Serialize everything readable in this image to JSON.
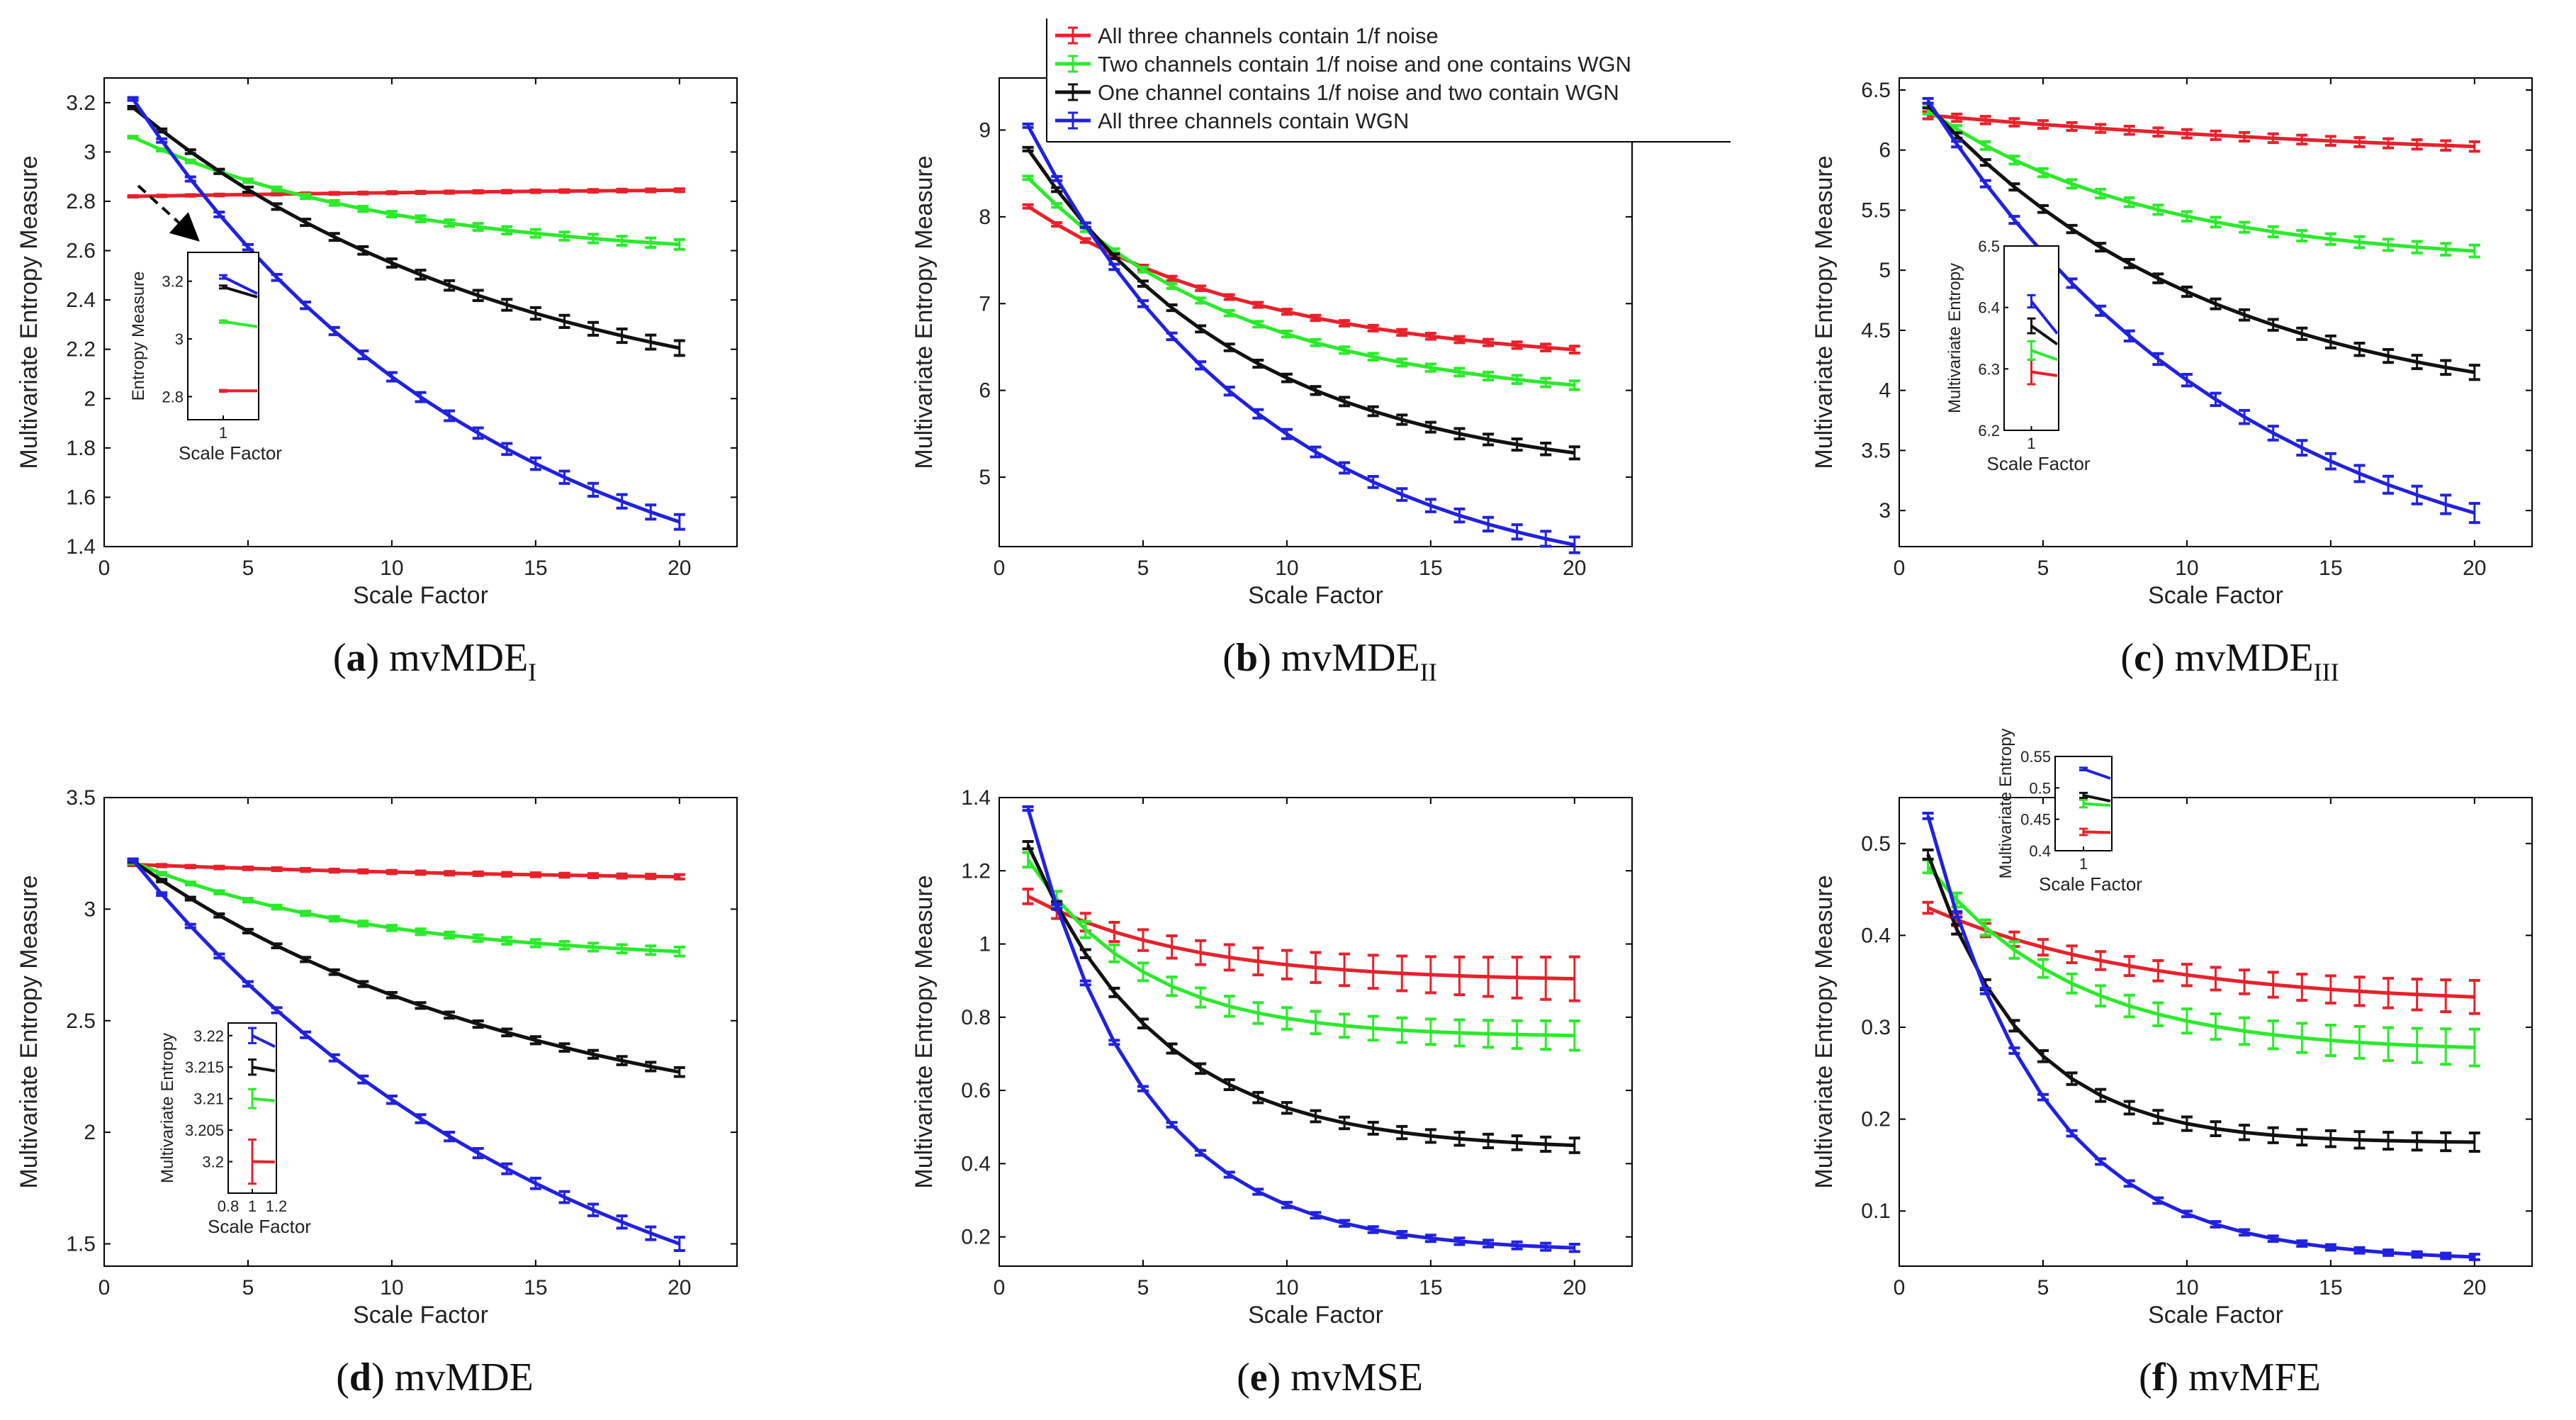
{
  "colors": {
    "red": "#e8212b",
    "green": "#2bea2b",
    "black": "#111111",
    "blue": "#2121e0"
  },
  "legend": {
    "entries": [
      {
        "label": "All three channels contain 1/f noise",
        "color": "#e8212b"
      },
      {
        "label": "Two channels contain 1/f noise and one contains WGN",
        "color": "#2bea2b"
      },
      {
        "label": "One channel contains 1/f noise and two contain WGN",
        "color": "#111111"
      },
      {
        "label": "All three channels contain WGN",
        "color": "#2121e0"
      }
    ]
  },
  "chart_data": [
    {
      "id": "a",
      "type": "line",
      "caption_letter": "(a)",
      "caption_main": "mvMDE",
      "caption_sub": "I",
      "xlabel": "Scale Factor",
      "ylabel": "Multivariate Entropy Measure",
      "xlim": [
        0,
        22
      ],
      "ylim": [
        1.4,
        3.3
      ],
      "xticks": [
        0,
        5,
        10,
        15,
        20
      ],
      "yticks": [
        1.4,
        1.6,
        1.8,
        2,
        2.2,
        2.4,
        2.6,
        2.8,
        3,
        3.2
      ],
      "ytick_labels": [
        "1.4",
        "1.6",
        "1.8",
        "2",
        "2.2",
        "2.4",
        "2.6",
        "2.8",
        "3",
        "3.2"
      ],
      "series": [
        {
          "name": "All three channels contain 1/f noise",
          "color": "#e8212b",
          "start": 2.82,
          "end": 2.845,
          "k": 0.05,
          "err0": 0.003,
          "err1": 0.006
        },
        {
          "name": "Two channels contain 1/f noise and one contains WGN",
          "color": "#2bea2b",
          "start": 3.06,
          "end": 2.625,
          "k": 0.11,
          "err0": 0.004,
          "err1": 0.02
        },
        {
          "name": "One channel contains 1/f noise and two contain WGN",
          "color": "#111111",
          "start": 3.18,
          "end": 2.205,
          "k": 0.075,
          "err0": 0.005,
          "err1": 0.03
        },
        {
          "name": "All three channels contain WGN",
          "color": "#2121e0",
          "start": 3.215,
          "end": 1.5,
          "k": 0.08,
          "err0": 0.006,
          "err1": 0.03
        }
      ],
      "inset": {
        "xlabel": "Scale Factor",
        "ylabel": "Entropy Measure",
        "xlim": [
          0.9,
          1.1
        ],
        "ylim": [
          2.72,
          3.3
        ],
        "xticks": [
          1
        ],
        "yticks": [
          2.8,
          3,
          3.2
        ],
        "ytick_labels": [
          "2.8",
          "3",
          "3.2"
        ],
        "values": [
          2.82,
          3.06,
          3.18,
          3.215
        ],
        "slopes": [
          0.0,
          -0.06,
          -0.12,
          -0.2
        ],
        "err": [
          0.003,
          0.004,
          0.005,
          0.006
        ]
      }
    },
    {
      "id": "b",
      "type": "line",
      "caption_letter": "(b)",
      "caption_main": "mvMDE",
      "caption_sub": "II",
      "xlabel": "Scale Factor",
      "ylabel": "Multivariate Entropy Measure",
      "xlim": [
        0,
        22
      ],
      "ylim": [
        4.2,
        9.6
      ],
      "xticks": [
        0,
        5,
        10,
        15,
        20
      ],
      "yticks": [
        5,
        6,
        7,
        8,
        9
      ],
      "ytick_labels": [
        "5",
        "6",
        "7",
        "8",
        "9"
      ],
      "series": [
        {
          "name": "All three channels contain 1/f noise",
          "color": "#e8212b",
          "start": 8.12,
          "end": 6.47,
          "k": 0.12,
          "err0": 0.02,
          "err1": 0.04
        },
        {
          "name": "Two channels contain 1/f noise and one contains WGN",
          "color": "#2bea2b",
          "start": 8.45,
          "end": 6.06,
          "k": 0.13,
          "err0": 0.02,
          "err1": 0.05
        },
        {
          "name": "One channel contains 1/f noise and two contain WGN",
          "color": "#111111",
          "start": 8.78,
          "end": 5.28,
          "k": 0.13,
          "err0": 0.02,
          "err1": 0.07
        },
        {
          "name": "All three channels contain WGN",
          "color": "#2121e0",
          "start": 9.05,
          "end": 4.22,
          "k": 0.12,
          "err0": 0.02,
          "err1": 0.09
        }
      ]
    },
    {
      "id": "c",
      "type": "line",
      "caption_letter": "(c)",
      "caption_main": "mvMDE",
      "caption_sub": "III",
      "xlabel": "Scale Factor",
      "ylabel": "Multivariate Entropy Measure",
      "xlim": [
        0,
        22
      ],
      "ylim": [
        2.7,
        6.6
      ],
      "xticks": [
        0,
        5,
        10,
        15,
        20
      ],
      "yticks": [
        3,
        3.5,
        4,
        4.5,
        5,
        5.5,
        6,
        6.5
      ],
      "ytick_labels": [
        "3",
        "3.5",
        "4",
        "4.5",
        "5",
        "5.5",
        "6",
        "6.5"
      ],
      "series": [
        {
          "name": "All three channels contain 1/f noise",
          "color": "#e8212b",
          "start": 6.29,
          "end": 6.03,
          "k": 0.05,
          "err0": 0.03,
          "err1": 0.04
        },
        {
          "name": "Two channels contain 1/f noise and one contains WGN",
          "color": "#2bea2b",
          "start": 6.33,
          "end": 5.16,
          "k": 0.13,
          "err0": 0.03,
          "err1": 0.05
        },
        {
          "name": "One channel contains 1/f noise and two contain WGN",
          "color": "#111111",
          "start": 6.37,
          "end": 4.15,
          "k": 0.1,
          "err0": 0.02,
          "err1": 0.06
        },
        {
          "name": "All three channels contain WGN",
          "color": "#2121e0",
          "start": 6.41,
          "end": 2.98,
          "k": 0.09,
          "err0": 0.02,
          "err1": 0.08
        }
      ],
      "inset": {
        "xlabel": "Scale Factor",
        "ylabel": "Multivariate Entropy",
        "xlim": [
          0.9,
          1.1
        ],
        "ylim": [
          6.2,
          6.5
        ],
        "xticks": [
          1
        ],
        "yticks": [
          6.2,
          6.3,
          6.4,
          6.5
        ],
        "ytick_labels": [
          "6.2",
          "6.3",
          "6.4",
          "6.5"
        ],
        "values": [
          6.295,
          6.33,
          6.37,
          6.41
        ],
        "slopes": [
          -0.04,
          -0.1,
          -0.2,
          -0.35
        ],
        "err": [
          0.02,
          0.015,
          0.012,
          0.01
        ]
      }
    },
    {
      "id": "d",
      "type": "line",
      "caption_letter": "(d)",
      "caption_main": "mvMDE",
      "caption_sub": "",
      "xlabel": "Scale Factor",
      "ylabel": "Multivariate Entropy Measure",
      "xlim": [
        0,
        22
      ],
      "ylim": [
        1.4,
        3.5
      ],
      "xticks": [
        0,
        5,
        10,
        15,
        20
      ],
      "yticks": [
        1.5,
        2,
        2.5,
        3,
        3.5
      ],
      "ytick_labels": [
        "1.5",
        "2",
        "2.5",
        "3",
        "3.5"
      ],
      "series": [
        {
          "name": "All three channels contain 1/f noise",
          "color": "#e8212b",
          "start": 3.2,
          "end": 3.145,
          "k": 0.06,
          "err0": 0.005,
          "err1": 0.01
        },
        {
          "name": "Two channels contain 1/f noise and one contains WGN",
          "color": "#2bea2b",
          "start": 3.21,
          "end": 2.81,
          "k": 0.12,
          "err0": 0.005,
          "err1": 0.02
        },
        {
          "name": "One channel contains 1/f noise and two contain WGN",
          "color": "#111111",
          "start": 3.215,
          "end": 2.27,
          "k": 0.07,
          "err0": 0.005,
          "err1": 0.02
        },
        {
          "name": "All three channels contain WGN",
          "color": "#2121e0",
          "start": 3.22,
          "end": 1.5,
          "k": 0.065,
          "err0": 0.005,
          "err1": 0.03
        }
      ],
      "inset": {
        "xlabel": "Scale Factor",
        "ylabel": "Multivariate Entropy",
        "xlim": [
          0.8,
          1.2
        ],
        "ylim": [
          3.195,
          3.222
        ],
        "xticks": [
          0.8,
          1,
          1.2
        ],
        "yticks": [
          3.2,
          3.205,
          3.21,
          3.215,
          3.22
        ],
        "ytick_labels": [
          "3.2",
          "3.205",
          "3.21",
          "3.215",
          "3.22"
        ],
        "values": [
          3.2,
          3.21,
          3.215,
          3.22
        ],
        "slopes": [
          -0.003,
          -0.025,
          -0.045,
          -0.13
        ],
        "err": [
          0.0035,
          0.0015,
          0.0012,
          0.0012
        ]
      }
    },
    {
      "id": "e",
      "type": "line",
      "caption_letter": "(e)",
      "caption_main": "mvMSE",
      "caption_sub": "",
      "xlabel": "Scale Factor",
      "ylabel": "Multivariate Entropy Measure",
      "xlim": [
        0,
        22
      ],
      "ylim": [
        0.12,
        1.4
      ],
      "xticks": [
        0,
        5,
        10,
        15,
        20
      ],
      "yticks": [
        0.2,
        0.4,
        0.6,
        0.8,
        1,
        1.2,
        1.4
      ],
      "ytick_labels": [
        "0.2",
        "0.4",
        "0.6",
        "0.8",
        "1",
        "1.2",
        "1.4"
      ],
      "series": [
        {
          "name": "All three channels contain 1/f noise",
          "color": "#e8212b",
          "start": 1.13,
          "end": 0.905,
          "k": 0.18,
          "err0": 0.02,
          "err1": 0.06
        },
        {
          "name": "Two channels contain 1/f noise and one contains WGN",
          "color": "#2bea2b",
          "start": 1.23,
          "end": 0.75,
          "k": 0.25,
          "err0": 0.02,
          "err1": 0.04
        },
        {
          "name": "One channel contains 1/f noise and two contain WGN",
          "color": "#111111",
          "start": 1.27,
          "end": 0.45,
          "k": 0.22,
          "err0": 0.01,
          "err1": 0.02
        },
        {
          "name": "All three channels contain WGN",
          "color": "#2121e0",
          "start": 1.37,
          "end": 0.17,
          "k": 0.25,
          "err0": 0.005,
          "err1": 0.01
        }
      ]
    },
    {
      "id": "f",
      "type": "line",
      "caption_letter": "(f)",
      "caption_main": "mvMFE",
      "caption_sub": "",
      "xlabel": "Scale Factor",
      "ylabel": "Multivariate Entropy Measure",
      "xlim": [
        0,
        22
      ],
      "ylim": [
        0.04,
        0.55
      ],
      "xticks": [
        0,
        5,
        10,
        15,
        20
      ],
      "yticks": [
        0.1,
        0.2,
        0.3,
        0.4,
        0.5
      ],
      "ytick_labels": [
        "0.1",
        "0.2",
        "0.3",
        "0.4",
        "0.5"
      ],
      "series": [
        {
          "name": "All three channels contain 1/f noise",
          "color": "#e8212b",
          "start": 0.43,
          "end": 0.333,
          "k": 0.13,
          "err0": 0.006,
          "err1": 0.018
        },
        {
          "name": "Two channels contain 1/f noise and one contains WGN",
          "color": "#2bea2b",
          "start": 0.475,
          "end": 0.278,
          "k": 0.2,
          "err0": 0.007,
          "err1": 0.02
        },
        {
          "name": "One channel contains 1/f noise and two contain WGN",
          "color": "#111111",
          "start": 0.488,
          "end": 0.175,
          "k": 0.3,
          "err0": 0.005,
          "err1": 0.01
        },
        {
          "name": "All three channels contain WGN",
          "color": "#2121e0",
          "start": 0.53,
          "end": 0.05,
          "k": 0.25,
          "err0": 0.003,
          "err1": 0.003
        }
      ],
      "inset": {
        "xlabel": "Scale Factor",
        "ylabel": "Multivariate Entropy",
        "xlim": [
          0.9,
          1.1
        ],
        "ylim": [
          0.4,
          0.55
        ],
        "xticks": [
          1
        ],
        "yticks": [
          0.4,
          0.45,
          0.5,
          0.55
        ],
        "ytick_labels": [
          "0.4",
          "0.45",
          "0.5",
          "0.55"
        ],
        "values": [
          0.43,
          0.475,
          0.488,
          0.53
        ],
        "slopes": [
          -0.015,
          -0.04,
          -0.12,
          -0.2
        ],
        "err": [
          0.005,
          0.006,
          0.004,
          0.002
        ]
      }
    }
  ]
}
